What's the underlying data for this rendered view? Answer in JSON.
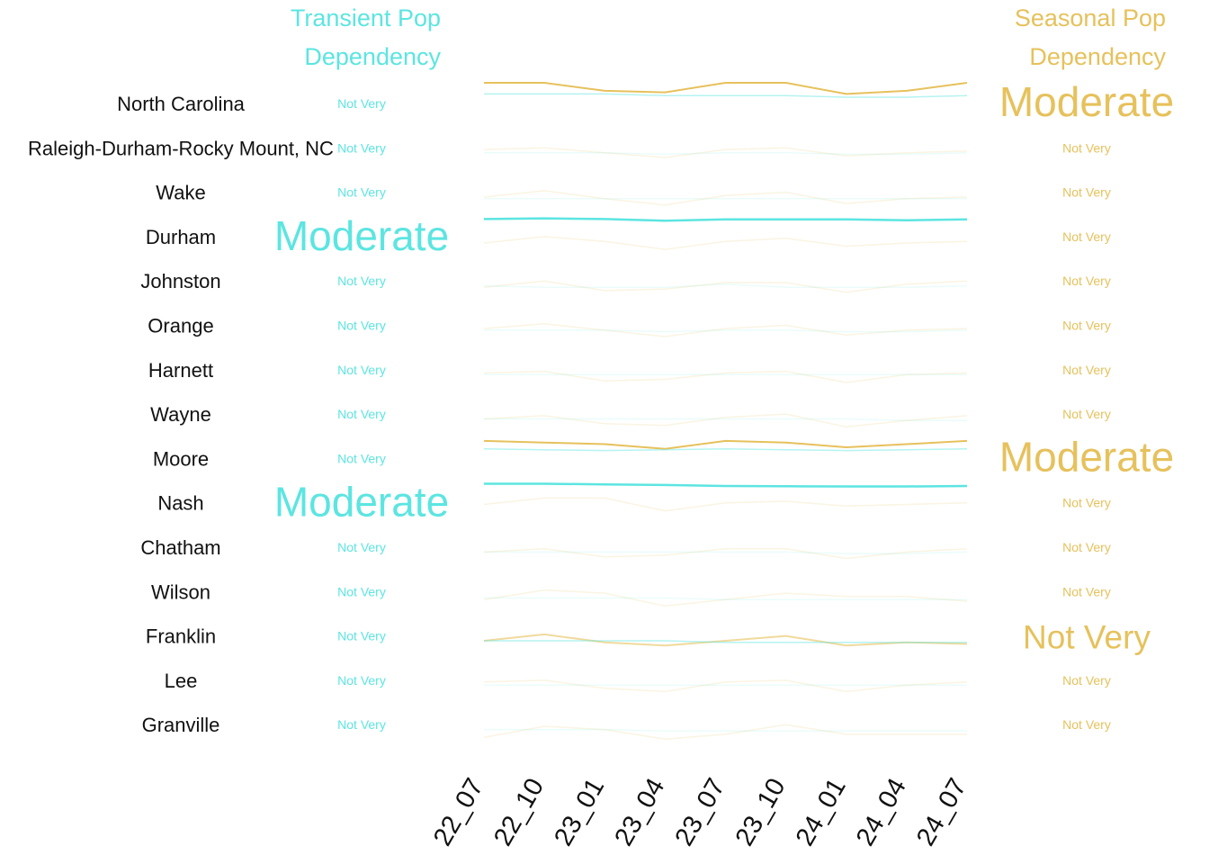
{
  "colors": {
    "transient": "#5ce5e1",
    "seasonal": "#e6c15c",
    "region_label": "#111111"
  },
  "chart_data": {
    "type": "line",
    "title_left": [
      "Transient Pop",
      "Dependency"
    ],
    "title_right": [
      "Seasonal Pop",
      "Dependency"
    ],
    "x": [
      "22_07",
      "22_10",
      "23_01",
      "23_04",
      "23_07",
      "23_10",
      "24_01",
      "24_04",
      "24_07"
    ],
    "regions": [
      {
        "name": "North Carolina",
        "transient_label": "Not Very",
        "seasonal_label": "Moderate",
        "transient_emph": false,
        "seasonal_emph": true,
        "transient": [
          15,
          15,
          15,
          14,
          14,
          14,
          13,
          13,
          14
        ],
        "seasonal": [
          22,
          22,
          17,
          16,
          22,
          22,
          15,
          17,
          22
        ]
      },
      {
        "name": "Raleigh-Durham-Rocky Mount, NC",
        "transient_label": "Not Very",
        "seasonal_label": "Not Very",
        "transient_emph": false,
        "seasonal_emph": false,
        "transient": [
          6,
          6,
          6,
          5,
          6,
          6,
          5,
          5,
          6
        ],
        "seasonal": [
          8,
          9,
          6,
          3,
          8,
          9,
          4,
          6,
          7
        ]
      },
      {
        "name": "Wake",
        "transient_label": "Not Very",
        "seasonal_label": "Not Very",
        "transient_emph": false,
        "seasonal_emph": false,
        "transient": [
          5,
          5,
          5,
          5,
          5,
          5,
          5,
          5,
          5
        ],
        "seasonal": [
          6,
          10,
          5,
          1,
          7,
          9,
          2,
          5,
          6
        ]
      },
      {
        "name": "Durham",
        "transient_label": "Moderate",
        "seasonal_label": "Not Very",
        "transient_emph": true,
        "seasonal_emph": false,
        "transient": [
          20,
          20.5,
          20,
          19,
          19.8,
          19.8,
          19.8,
          19.3,
          19.8
        ],
        "seasonal": [
          5,
          9,
          6,
          1,
          6,
          8,
          3,
          5,
          6
        ]
      },
      {
        "name": "Johnston",
        "transient_label": "Not Very",
        "seasonal_label": "Not Very",
        "transient_emph": false,
        "seasonal_emph": false,
        "transient": [
          6,
          5,
          5,
          5,
          7,
          5,
          5,
          5,
          6
        ],
        "seasonal": [
          5,
          9,
          3,
          4,
          8,
          8,
          2,
          7,
          9
        ]
      },
      {
        "name": "Orange",
        "transient_label": "Not Very",
        "seasonal_label": "Not Very",
        "transient_emph": false,
        "seasonal_emph": false,
        "transient": [
          6,
          6,
          6,
          5,
          6,
          6,
          5,
          5,
          6
        ],
        "seasonal": [
          7,
          10,
          6,
          2,
          7,
          9,
          3,
          6,
          7
        ]
      },
      {
        "name": "Harnett",
        "transient_label": "Not Very",
        "seasonal_label": "Not Very",
        "transient_emph": false,
        "seasonal_emph": false,
        "transient": [
          6,
          6,
          6,
          6,
          6,
          6,
          6,
          6,
          6
        ],
        "seasonal": [
          7,
          8,
          2,
          3,
          7,
          8,
          1,
          6,
          7
        ]
      },
      {
        "name": "Wayne",
        "transient_label": "Not Very",
        "seasonal_label": "Not Very",
        "transient_emph": false,
        "seasonal_emph": false,
        "transient": [
          6,
          6,
          6,
          6,
          6,
          6,
          6,
          5,
          5
        ],
        "seasonal": [
          6,
          8,
          3,
          2,
          7,
          9,
          1,
          5,
          8
        ]
      },
      {
        "name": "Moore",
        "transient_label": "Not Very",
        "seasonal_label": "Moderate",
        "transient_emph": false,
        "seasonal_emph": true,
        "transient": [
          15,
          14.5,
          14,
          14.5,
          15,
          14.5,
          14,
          14.5,
          15
        ],
        "seasonal": [
          20,
          19,
          18,
          15,
          20,
          19,
          16,
          18,
          20
        ]
      },
      {
        "name": "Nash",
        "transient_label": "Moderate",
        "seasonal_label": "Not Very",
        "transient_emph": true,
        "seasonal_emph": false,
        "transient": [
          21,
          21,
          20.6,
          20.2,
          19.6,
          19.4,
          19.3,
          19.3,
          19.6
        ],
        "seasonal": [
          8,
          12,
          12,
          4,
          9,
          10,
          7,
          8,
          9
        ]
      },
      {
        "name": "Chatham",
        "transient_label": "Not Very",
        "seasonal_label": "Not Very",
        "transient_emph": false,
        "seasonal_emph": false,
        "transient": [
          6,
          6,
          6,
          6,
          6,
          6,
          5,
          5,
          6
        ],
        "seasonal": [
          6,
          8,
          3,
          4,
          8,
          8,
          2,
          6,
          8
        ]
      },
      {
        "name": "Wilson",
        "transient_label": "Not Very",
        "seasonal_label": "Not Very",
        "transient_emph": false,
        "seasonal_emph": false,
        "transient": [
          5,
          5,
          5,
          5,
          4,
          4,
          4,
          4,
          4
        ],
        "seasonal": [
          4,
          10,
          8,
          0,
          4,
          8,
          6,
          6,
          3
        ]
      },
      {
        "name": "Franklin",
        "transient_label": "Not Very",
        "seasonal_label": "Not Very",
        "transient_emph": false,
        "seasonal_emph": true,
        "transient": [
          6,
          6,
          6,
          6,
          5,
          5,
          5,
          5,
          5
        ],
        "seasonal": [
          6,
          10,
          5,
          3,
          6,
          9,
          3,
          5,
          4
        ]
      },
      {
        "name": "Lee",
        "transient_label": "Not Very",
        "seasonal_label": "Not Very",
        "transient_emph": false,
        "seasonal_emph": false,
        "transient": [
          6,
          6,
          6,
          6,
          6,
          6,
          6,
          6,
          6
        ],
        "seasonal": [
          8,
          9,
          4,
          2,
          8,
          9,
          2,
          6,
          8
        ]
      },
      {
        "name": "Granville",
        "transient_label": "Not Very",
        "seasonal_label": "Not Very",
        "transient_emph": false,
        "seasonal_emph": false,
        "transient": [
          6,
          6,
          6,
          5,
          5,
          5,
          5,
          5,
          5
        ],
        "seasonal": [
          1,
          8,
          6,
          0,
          3,
          9,
          3,
          3,
          3
        ]
      }
    ]
  }
}
